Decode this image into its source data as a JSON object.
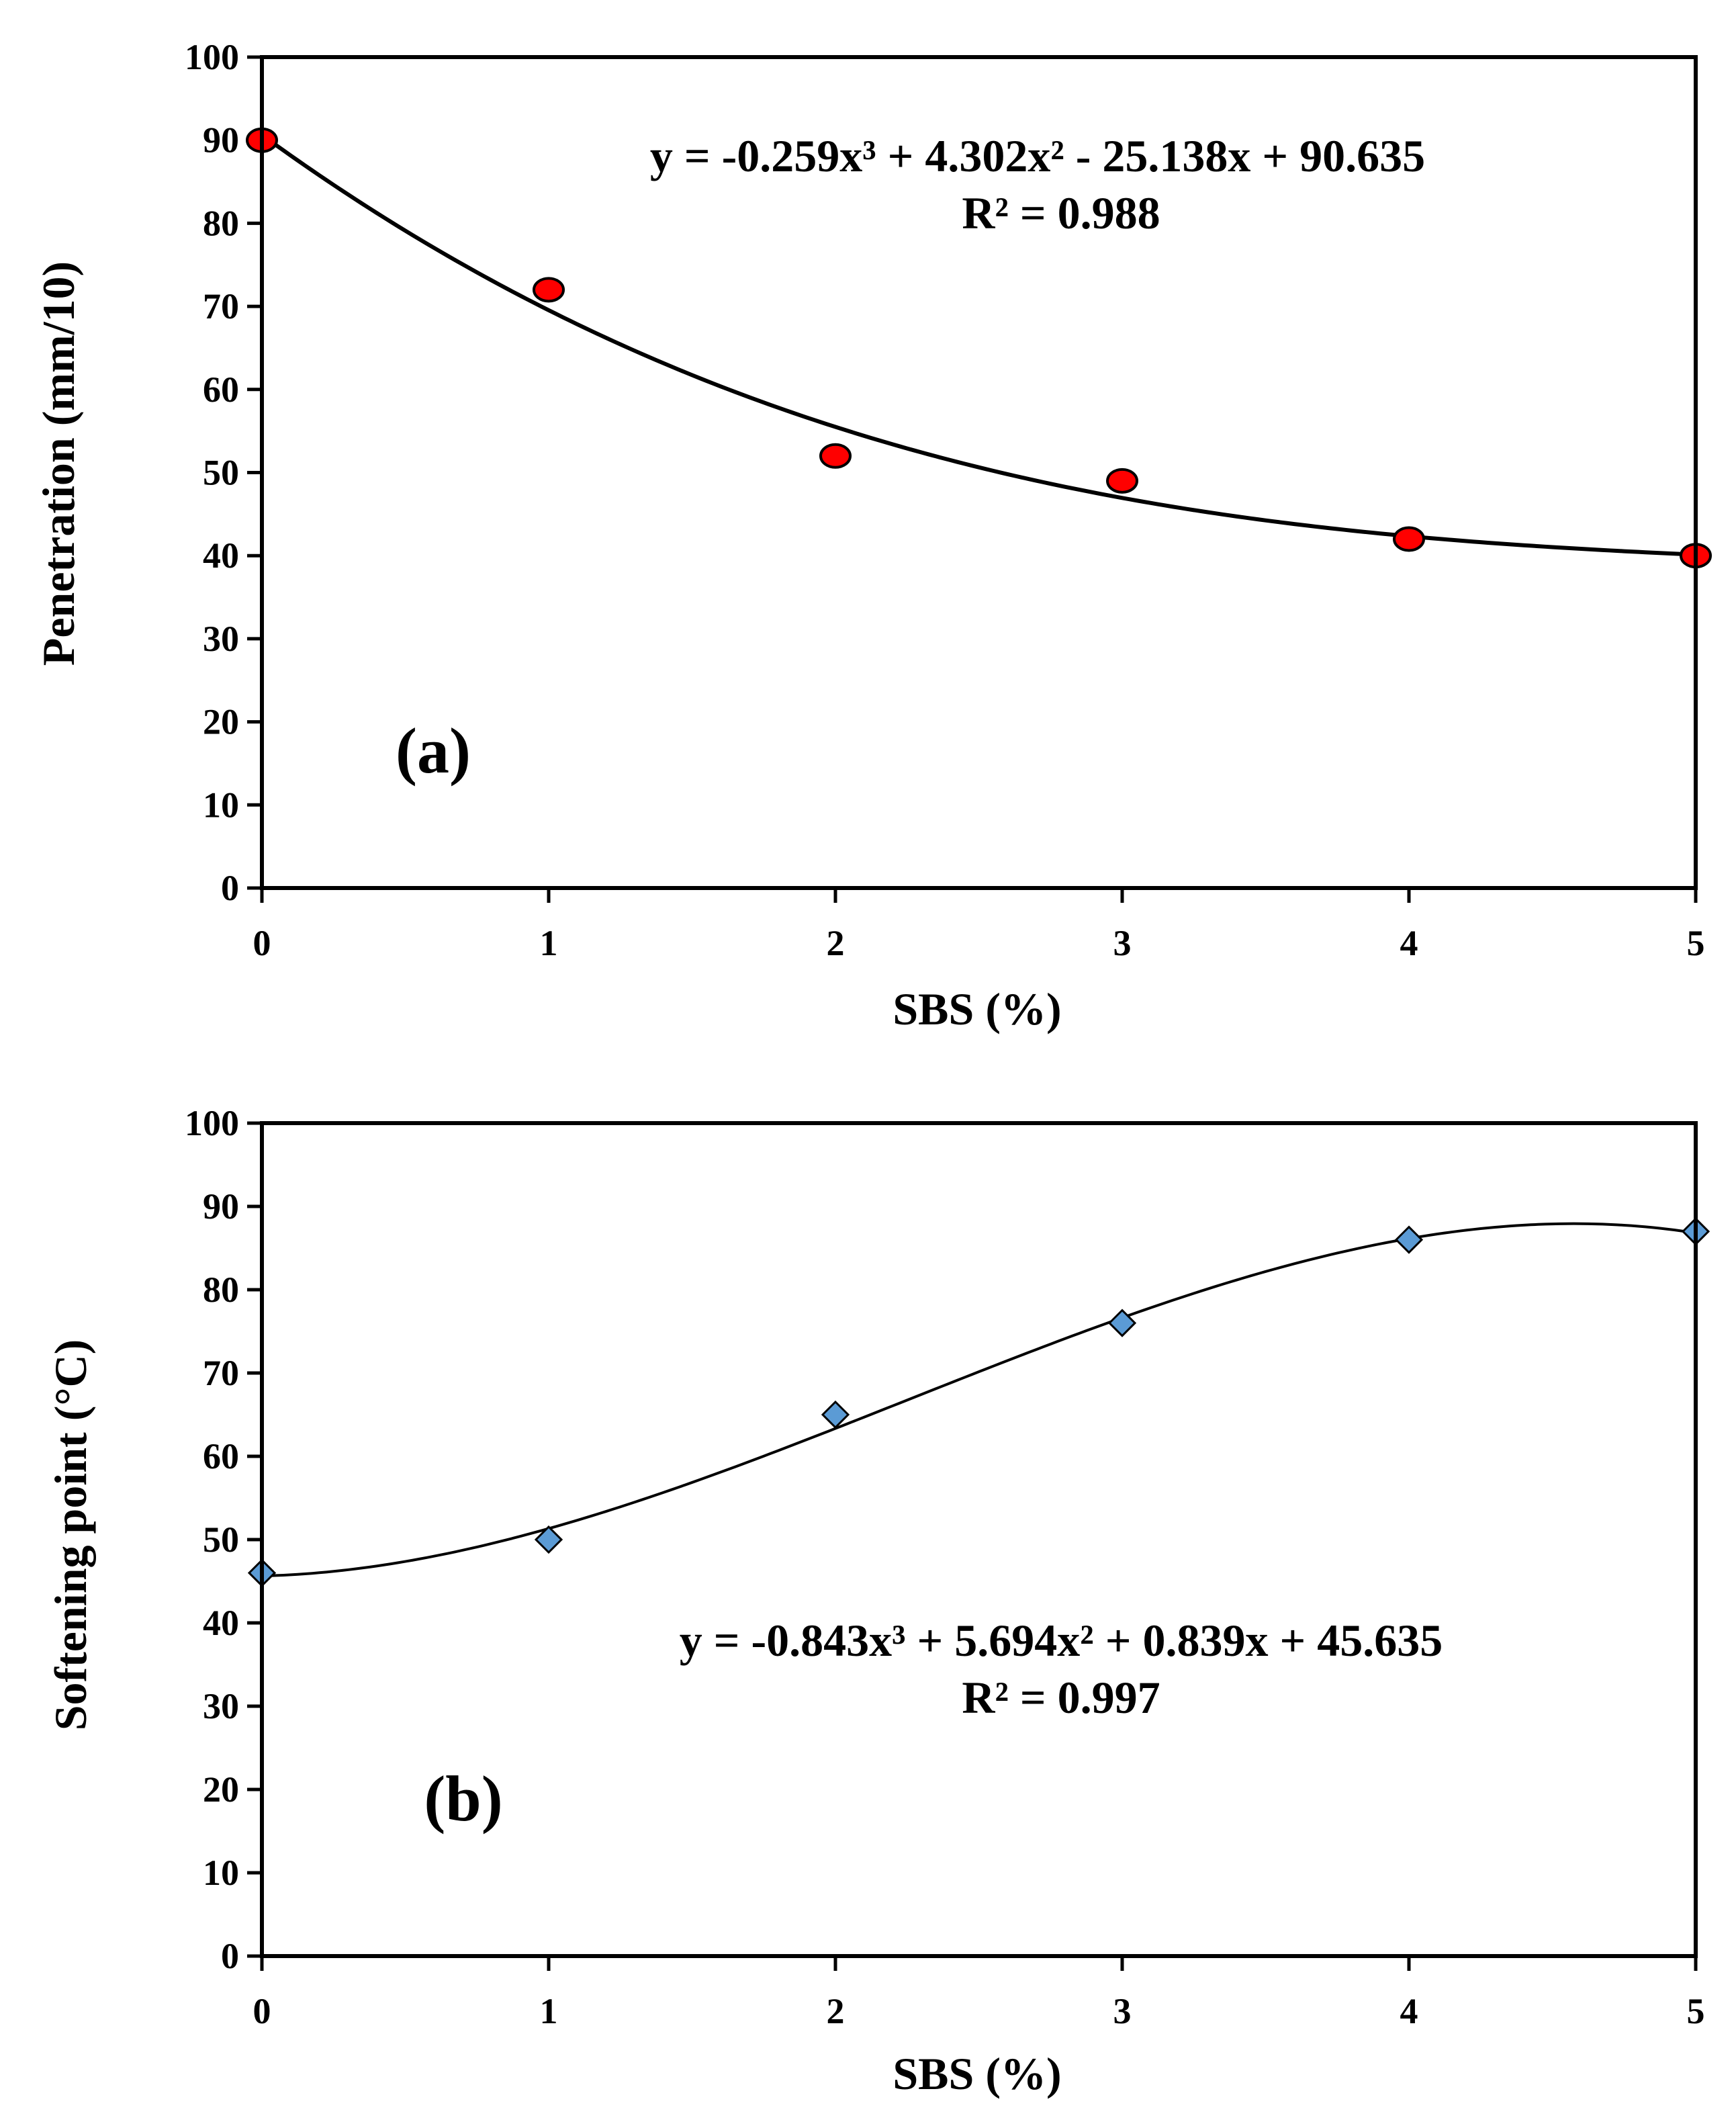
{
  "chart_data": [
    {
      "id": "a",
      "type": "scatter",
      "panel_label": "(a)",
      "title": "",
      "xlabel": "SBS (%)",
      "ylabel": "Penetration (mm/10)",
      "xlim": [
        0,
        5
      ],
      "ylim": [
        0,
        100
      ],
      "x_ticks": [
        0,
        1,
        2,
        3,
        4,
        5
      ],
      "y_ticks": [
        0,
        10,
        20,
        30,
        40,
        50,
        60,
        70,
        80,
        90,
        100
      ],
      "marker": "circle",
      "marker_color": "#ff0000",
      "series": [
        {
          "name": "Penetration",
          "x": [
            0,
            1,
            2,
            3,
            4,
            5
          ],
          "y": [
            90,
            72,
            52,
            49,
            42,
            40
          ]
        }
      ],
      "trendline": {
        "type": "polynomial",
        "coefficients": [
          -0.259,
          4.302,
          -25.138,
          90.635
        ],
        "equation": "y = -0.259x³ + 4.302x² - 25.138x + 90.635",
        "r2": "R² = 0.988"
      }
    },
    {
      "id": "b",
      "type": "scatter",
      "panel_label": "(b)",
      "title": "",
      "xlabel": "SBS (%)",
      "ylabel": "Softening point (°C)",
      "xlim": [
        0,
        5
      ],
      "ylim": [
        0,
        100
      ],
      "x_ticks": [
        0,
        1,
        2,
        3,
        4,
        5
      ],
      "y_ticks": [
        0,
        10,
        20,
        30,
        40,
        50,
        60,
        70,
        80,
        90,
        100
      ],
      "marker": "diamond",
      "marker_color": "#5b9bd5",
      "series": [
        {
          "name": "Softening point",
          "x": [
            0,
            1,
            2,
            3,
            4,
            5
          ],
          "y": [
            46,
            50,
            65,
            76,
            86,
            87
          ]
        }
      ],
      "trendline": {
        "type": "polynomial",
        "coefficients": [
          -0.843,
          5.694,
          0.839,
          45.635
        ],
        "equation": "y = -0.843x³ + 5.694x² + 0.839x + 45.635",
        "r2": "R² = 0.997"
      }
    }
  ]
}
